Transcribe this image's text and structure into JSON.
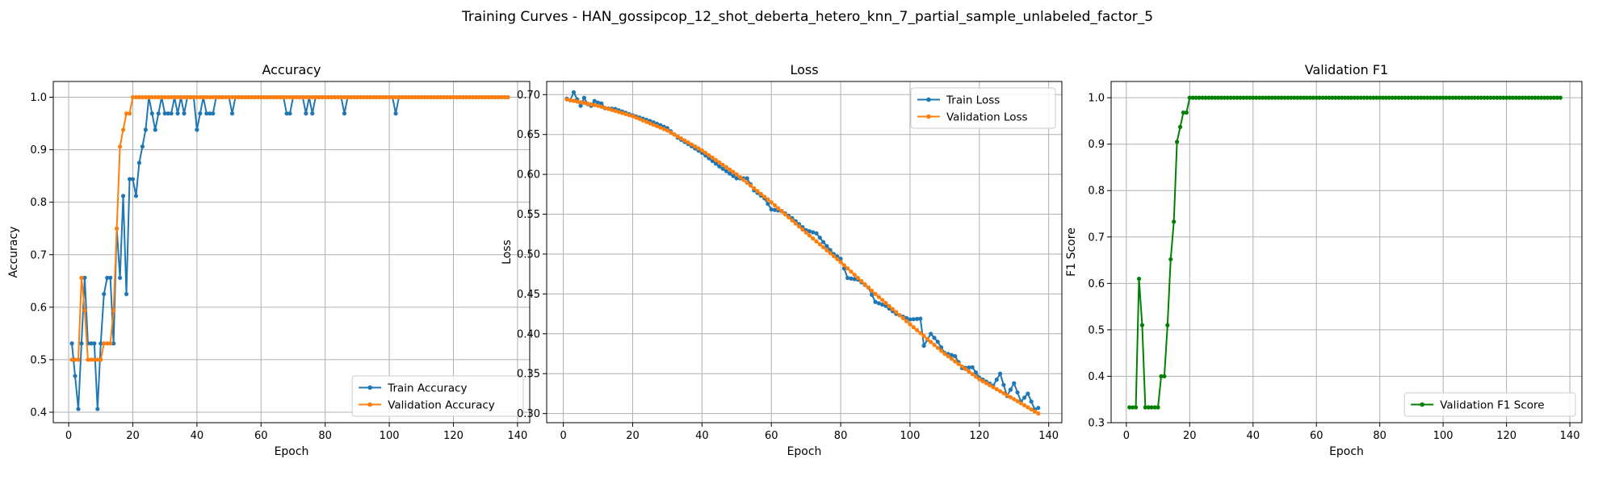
{
  "figure": {
    "title": "Training Curves - HAN_gossipcop_12_shot_deberta_hetero_knn_7_partial_sample_unlabeled_factor_5"
  },
  "chart_data": [
    {
      "type": "line",
      "title": "Accuracy",
      "xlabel": "Epoch",
      "ylabel": "Accuracy",
      "xlim": [
        -4.8,
        143.8
      ],
      "ylim": [
        0.38,
        1.03
      ],
      "xticks": [
        0,
        20,
        40,
        60,
        80,
        100,
        120,
        140
      ],
      "yticks": [
        0.4,
        0.5,
        0.6,
        0.7,
        0.8,
        0.9,
        1.0
      ],
      "ytick_labels": [
        "0.4",
        "0.5",
        "0.6",
        "0.7",
        "0.8",
        "0.9",
        "1.0"
      ],
      "grid": true,
      "legend_position": "lower-right",
      "x_range": [
        1,
        137
      ],
      "series": [
        {
          "name": "Train Accuracy",
          "color": "#1f77b4",
          "points": [
            [
              1,
              0.531
            ],
            [
              2,
              0.469
            ],
            [
              3,
              0.406
            ],
            [
              4,
              0.531
            ],
            [
              5,
              0.656
            ],
            [
              6,
              0.531
            ],
            [
              7,
              0.531
            ],
            [
              8,
              0.531
            ],
            [
              9,
              0.406
            ],
            [
              10,
              0.531
            ],
            [
              11,
              0.625
            ],
            [
              12,
              0.656
            ],
            [
              13,
              0.656
            ],
            [
              14,
              0.531
            ],
            [
              15,
              0.75
            ],
            [
              16,
              0.656
            ],
            [
              17,
              0.812
            ],
            [
              18,
              0.625
            ],
            [
              19,
              0.844
            ],
            [
              20,
              0.844
            ],
            [
              21,
              0.812
            ],
            [
              22,
              0.875
            ],
            [
              23,
              0.906
            ],
            [
              24,
              0.938
            ],
            [
              25,
              1.0
            ],
            [
              26,
              0.969
            ],
            [
              27,
              0.938
            ],
            [
              28,
              0.969
            ],
            [
              29,
              1.0
            ],
            [
              30,
              0.969
            ],
            [
              31,
              0.969
            ],
            [
              32,
              0.969
            ],
            [
              33,
              1.0
            ],
            [
              34,
              0.969
            ],
            [
              35,
              1.0
            ],
            [
              36,
              0.969
            ],
            [
              37,
              1.0
            ],
            [
              38,
              1.0
            ],
            [
              39,
              1.0
            ],
            [
              40,
              0.938
            ],
            [
              41,
              0.969
            ],
            [
              42,
              1.0
            ],
            [
              43,
              0.969
            ],
            [
              44,
              0.969
            ],
            [
              45,
              0.969
            ],
            [
              46,
              1.0
            ],
            [
              47,
              1.0
            ],
            [
              48,
              1.0
            ],
            [
              49,
              1.0
            ],
            [
              50,
              1.0
            ],
            [
              51,
              0.969
            ],
            [
              52,
              1.0
            ],
            [
              67,
              1.0
            ],
            [
              68,
              0.969
            ],
            [
              69,
              0.969
            ],
            [
              70,
              1.0
            ],
            [
              73,
              1.0
            ],
            [
              74,
              0.969
            ],
            [
              75,
              1.0
            ],
            [
              76,
              0.969
            ],
            [
              77,
              1.0
            ],
            [
              85,
              1.0
            ],
            [
              86,
              0.969
            ],
            [
              87,
              1.0
            ],
            [
              101,
              1.0
            ],
            [
              102,
              0.969
            ],
            [
              103,
              1.0
            ]
          ],
          "value_after_listed_points": 1.0
        },
        {
          "name": "Validation Accuracy",
          "color": "#ff7f0e",
          "points": [
            [
              1,
              0.5
            ],
            [
              2,
              0.5
            ],
            [
              3,
              0.5
            ],
            [
              4,
              0.656
            ],
            [
              5,
              0.594
            ],
            [
              6,
              0.5
            ],
            [
              7,
              0.5
            ],
            [
              8,
              0.5
            ],
            [
              9,
              0.5
            ],
            [
              10,
              0.5
            ],
            [
              11,
              0.531
            ],
            [
              12,
              0.531
            ],
            [
              13,
              0.531
            ],
            [
              14,
              0.594
            ],
            [
              15,
              0.75
            ],
            [
              16,
              0.906
            ],
            [
              17,
              0.938
            ],
            [
              18,
              0.969
            ],
            [
              19,
              0.969
            ],
            [
              20,
              1.0
            ]
          ],
          "value_after_listed_points": 1.0
        }
      ]
    },
    {
      "type": "line",
      "title": "Loss",
      "xlabel": "Epoch",
      "ylabel": "Loss",
      "xlim": [
        -4.8,
        143.8
      ],
      "ylim": [
        0.2885,
        0.7165
      ],
      "xticks": [
        0,
        20,
        40,
        60,
        80,
        100,
        120,
        140
      ],
      "yticks": [
        0.3,
        0.35,
        0.4,
        0.45,
        0.5,
        0.55,
        0.6,
        0.65,
        0.7
      ],
      "ytick_labels": [
        "0.30",
        "0.35",
        "0.40",
        "0.45",
        "0.50",
        "0.55",
        "0.60",
        "0.65",
        "0.70"
      ],
      "grid": true,
      "legend_position": "top-right",
      "x_range": [
        1,
        137
      ],
      "series": [
        {
          "name": "Train Loss",
          "color": "#1f77b4",
          "points": [
            [
              1,
              0.695
            ],
            [
              2,
              0.693
            ],
            [
              3,
              0.703
            ],
            [
              4,
              0.694
            ],
            [
              5,
              0.686
            ],
            [
              6,
              0.696
            ],
            [
              7,
              0.688
            ],
            [
              8,
              0.686
            ],
            [
              9,
              0.692
            ],
            [
              10,
              0.69
            ],
            [
              11,
              0.689
            ],
            [
              12,
              0.683
            ],
            [
              15,
              0.682
            ],
            [
              20,
              0.674
            ],
            [
              25,
              0.667
            ],
            [
              30,
              0.658
            ],
            [
              33,
              0.646
            ],
            [
              36,
              0.638
            ],
            [
              40,
              0.627
            ],
            [
              45,
              0.61
            ],
            [
              50,
              0.595
            ],
            [
              53,
              0.595
            ],
            [
              55,
              0.58
            ],
            [
              58,
              0.57
            ],
            [
              60,
              0.556
            ],
            [
              63,
              0.554
            ],
            [
              66,
              0.545
            ],
            [
              70,
              0.53
            ],
            [
              73,
              0.526
            ],
            [
              75,
              0.515
            ],
            [
              78,
              0.5
            ],
            [
              80,
              0.494
            ],
            [
              82,
              0.47
            ],
            [
              85,
              0.468
            ],
            [
              88,
              0.458
            ],
            [
              90,
              0.44
            ],
            [
              93,
              0.435
            ],
            [
              96,
              0.425
            ],
            [
              100,
              0.418
            ],
            [
              103,
              0.419
            ],
            [
              104,
              0.385
            ],
            [
              106,
              0.4
            ],
            [
              108,
              0.39
            ],
            [
              110,
              0.376
            ],
            [
              113,
              0.372
            ],
            [
              115,
              0.357
            ],
            [
              118,
              0.358
            ],
            [
              120,
              0.345
            ],
            [
              122,
              0.34
            ],
            [
              124,
              0.335
            ],
            [
              126,
              0.35
            ],
            [
              128,
              0.322
            ],
            [
              130,
              0.338
            ],
            [
              132,
              0.315
            ],
            [
              134,
              0.325
            ],
            [
              136,
              0.305
            ],
            [
              137,
              0.307
            ]
          ]
        },
        {
          "name": "Validation Loss",
          "color": "#ff7f0e",
          "points": [
            [
              1,
              0.694
            ],
            [
              10,
              0.686
            ],
            [
              20,
              0.673
            ],
            [
              30,
              0.655
            ],
            [
              40,
              0.63
            ],
            [
              50,
              0.6
            ],
            [
              60,
              0.565
            ],
            [
              70,
              0.527
            ],
            [
              80,
              0.49
            ],
            [
              90,
              0.45
            ],
            [
              100,
              0.412
            ],
            [
              110,
              0.375
            ],
            [
              120,
              0.343
            ],
            [
              130,
              0.318
            ],
            [
              137,
              0.3
            ]
          ]
        }
      ]
    },
    {
      "type": "line",
      "title": "Validation F1",
      "xlabel": "Epoch",
      "ylabel": "F1 Score",
      "xlim": [
        -4.8,
        143.8
      ],
      "ylim": [
        0.3,
        1.035
      ],
      "xticks": [
        0,
        20,
        40,
        60,
        80,
        100,
        120,
        140
      ],
      "yticks": [
        0.3,
        0.4,
        0.5,
        0.6,
        0.7,
        0.8,
        0.9,
        1.0
      ],
      "ytick_labels": [
        "0.3",
        "0.4",
        "0.5",
        "0.6",
        "0.7",
        "0.8",
        "0.9",
        "1.0"
      ],
      "grid": true,
      "legend_position": "lower-right",
      "x_range": [
        1,
        137
      ],
      "series": [
        {
          "name": "Validation F1 Score",
          "color": "#008000",
          "points": [
            [
              1,
              0.333
            ],
            [
              2,
              0.333
            ],
            [
              3,
              0.333
            ],
            [
              4,
              0.61
            ],
            [
              5,
              0.51
            ],
            [
              6,
              0.333
            ],
            [
              7,
              0.333
            ],
            [
              8,
              0.333
            ],
            [
              9,
              0.333
            ],
            [
              10,
              0.333
            ],
            [
              11,
              0.4
            ],
            [
              12,
              0.4
            ],
            [
              13,
              0.51
            ],
            [
              14,
              0.652
            ],
            [
              15,
              0.733
            ],
            [
              16,
              0.905
            ],
            [
              17,
              0.937
            ],
            [
              18,
              0.968
            ],
            [
              19,
              0.968
            ],
            [
              20,
              1.0
            ]
          ],
          "value_after_listed_points": 1.0
        }
      ]
    }
  ]
}
